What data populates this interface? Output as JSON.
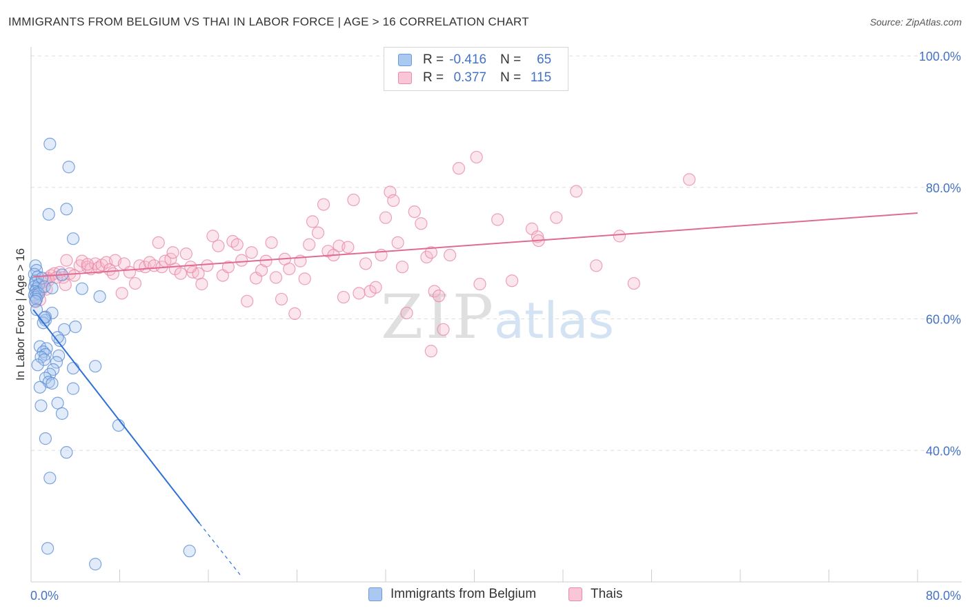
{
  "header": {
    "title": "IMMIGRANTS FROM BELGIUM VS THAI IN LABOR FORCE | AGE > 16 CORRELATION CHART",
    "source": "Source: ZipAtlas.com"
  },
  "watermark": {
    "zip": "ZIP",
    "atlas": "atlas"
  },
  "legend_top": {
    "rows": [
      {
        "r_label": "R =",
        "r_value": "-0.416",
        "n_label": "N =",
        "n_value": "65",
        "color": "#aac8f0",
        "border": "#6a9ad8"
      },
      {
        "r_label": "R =",
        "r_value": "0.377",
        "n_label": "N =",
        "n_value": "115",
        "color": "#f8c6d6",
        "border": "#e88aa8"
      }
    ]
  },
  "legend_bottom": {
    "items": [
      {
        "label": "Immigrants from Belgium",
        "color": "#aac8f0",
        "border": "#6a9ad8"
      },
      {
        "label": "Thais",
        "color": "#f8c6d6",
        "border": "#e88aa8"
      }
    ]
  },
  "chart_data": {
    "type": "scatter",
    "ylabel": "In Labor Force | Age > 16",
    "xlim": [
      0,
      80
    ],
    "ylim": [
      20,
      102
    ],
    "x_tick_labels": [
      {
        "value": 0,
        "label": "0.0%"
      },
      {
        "value": 80,
        "label": "80.0%"
      }
    ],
    "y_tick_labels": [
      {
        "value": 100,
        "label": "100.0%"
      },
      {
        "value": 80,
        "label": "80.0%"
      },
      {
        "value": 60,
        "label": "60.0%"
      },
      {
        "value": 40,
        "label": "40.0%"
      }
    ],
    "y_gridlines": [
      100,
      80,
      60,
      40
    ],
    "x_minor_ticks": [
      8,
      16,
      24,
      32,
      40,
      48,
      56,
      64,
      72,
      80
    ],
    "colors": {
      "blue": "#4a86d8",
      "pink": "#e8709a",
      "blue_line": "#2e6fd6",
      "pink_line": "#e06a92",
      "tick_label": "#4472c4"
    },
    "series": [
      {
        "name": "Immigrants from Belgium",
        "color": "#7ea8e6",
        "trend": {
          "x": [
            0.2,
            15.2
          ],
          "y": [
            61.4,
            28.9
          ],
          "dash_to": [
            19.0,
            20.8
          ]
        },
        "points": [
          [
            1.7,
            86.6
          ],
          [
            3.4,
            83.1
          ],
          [
            3.2,
            76.7
          ],
          [
            1.6,
            75.9
          ],
          [
            3.8,
            72.2
          ],
          [
            0.4,
            68.1
          ],
          [
            0.5,
            67.4
          ],
          [
            0.3,
            66.8
          ],
          [
            0.4,
            65.8
          ],
          [
            0.6,
            66.4
          ],
          [
            0.4,
            65.5
          ],
          [
            0.3,
            64.9
          ],
          [
            0.5,
            64.6
          ],
          [
            0.7,
            65.2
          ],
          [
            0.4,
            64.2
          ],
          [
            0.6,
            64.0
          ],
          [
            0.3,
            63.6
          ],
          [
            0.4,
            63.3
          ],
          [
            0.7,
            63.8
          ],
          [
            1.0,
            66.2
          ],
          [
            2.8,
            66.7
          ],
          [
            1.2,
            64.9
          ],
          [
            0.5,
            63.0
          ],
          [
            0.4,
            62.7
          ],
          [
            1.9,
            64.7
          ],
          [
            4.6,
            64.6
          ],
          [
            6.2,
            63.4
          ],
          [
            0.5,
            61.4
          ],
          [
            1.9,
            60.9
          ],
          [
            1.3,
            60.3
          ],
          [
            1.3,
            59.8
          ],
          [
            1.1,
            59.4
          ],
          [
            3.0,
            58.4
          ],
          [
            4.0,
            58.8
          ],
          [
            2.6,
            56.7
          ],
          [
            0.8,
            55.8
          ],
          [
            1.4,
            55.5
          ],
          [
            1.1,
            55.0
          ],
          [
            1.3,
            54.6
          ],
          [
            2.5,
            54.4
          ],
          [
            0.9,
            54.2
          ],
          [
            1.2,
            53.8
          ],
          [
            2.3,
            53.4
          ],
          [
            0.6,
            53.0
          ],
          [
            3.8,
            52.5
          ],
          [
            5.8,
            52.8
          ],
          [
            2.0,
            52.3
          ],
          [
            1.7,
            51.6
          ],
          [
            1.3,
            51.0
          ],
          [
            1.6,
            50.4
          ],
          [
            1.9,
            50.2
          ],
          [
            0.8,
            49.6
          ],
          [
            3.8,
            49.4
          ],
          [
            2.4,
            47.2
          ],
          [
            0.9,
            46.8
          ],
          [
            2.8,
            45.6
          ],
          [
            7.9,
            43.8
          ],
          [
            1.3,
            41.8
          ],
          [
            3.2,
            39.7
          ],
          [
            1.7,
            35.8
          ],
          [
            1.5,
            25.1
          ],
          [
            14.3,
            24.7
          ],
          [
            5.8,
            22.7
          ],
          [
            1.2,
            60.2
          ],
          [
            2.4,
            57.2
          ]
        ]
      },
      {
        "name": "Thais",
        "color": "#f0a2bc",
        "trend": {
          "x": [
            0.2,
            80.0
          ],
          "y": [
            66.4,
            76.1
          ]
        },
        "points": [
          [
            0.4,
            62.6
          ],
          [
            0.6,
            63.9
          ],
          [
            0.9,
            64.4
          ],
          [
            1.0,
            64.9
          ],
          [
            1.2,
            65.7
          ],
          [
            1.5,
            66.2
          ],
          [
            1.8,
            66.6
          ],
          [
            2.1,
            66.9
          ],
          [
            1.6,
            65.9
          ],
          [
            2.6,
            67.1
          ],
          [
            2.9,
            66.3
          ],
          [
            3.1,
            65.2
          ],
          [
            3.5,
            66.9
          ],
          [
            3.9,
            66.6
          ],
          [
            4.4,
            68.1
          ],
          [
            4.6,
            68.8
          ],
          [
            5.1,
            67.9
          ],
          [
            5.4,
            67.6
          ],
          [
            5.8,
            68.4
          ],
          [
            6.1,
            67.8
          ],
          [
            6.4,
            68.2
          ],
          [
            6.8,
            68.6
          ],
          [
            7.1,
            67.5
          ],
          [
            7.4,
            66.9
          ],
          [
            7.6,
            68.9
          ],
          [
            8.4,
            68.4
          ],
          [
            8.9,
            67.1
          ],
          [
            9.4,
            65.4
          ],
          [
            9.8,
            68.1
          ],
          [
            10.3,
            67.9
          ],
          [
            10.7,
            68.6
          ],
          [
            11.1,
            68.1
          ],
          [
            11.5,
            71.6
          ],
          [
            11.8,
            67.9
          ],
          [
            12.1,
            68.8
          ],
          [
            12.6,
            69.1
          ],
          [
            13.0,
            67.6
          ],
          [
            13.5,
            66.9
          ],
          [
            14.0,
            69.9
          ],
          [
            14.6,
            67.1
          ],
          [
            15.1,
            66.9
          ],
          [
            15.4,
            65.3
          ],
          [
            15.9,
            68.1
          ],
          [
            16.4,
            72.6
          ],
          [
            16.9,
            71.1
          ],
          [
            17.3,
            66.6
          ],
          [
            17.8,
            67.9
          ],
          [
            18.2,
            71.8
          ],
          [
            18.6,
            71.3
          ],
          [
            19.0,
            68.9
          ],
          [
            19.5,
            62.7
          ],
          [
            19.9,
            70.1
          ],
          [
            20.3,
            66.2
          ],
          [
            20.8,
            67.4
          ],
          [
            21.2,
            68.8
          ],
          [
            21.7,
            71.6
          ],
          [
            22.1,
            66.3
          ],
          [
            22.6,
            63.0
          ],
          [
            22.9,
            69.1
          ],
          [
            23.3,
            67.6
          ],
          [
            23.8,
            60.8
          ],
          [
            24.3,
            68.8
          ],
          [
            24.7,
            66.1
          ],
          [
            25.1,
            71.3
          ],
          [
            25.4,
            74.8
          ],
          [
            25.9,
            73.1
          ],
          [
            26.4,
            77.4
          ],
          [
            26.8,
            70.3
          ],
          [
            27.3,
            69.7
          ],
          [
            27.8,
            71.1
          ],
          [
            28.2,
            63.3
          ],
          [
            28.6,
            70.9
          ],
          [
            29.1,
            78.1
          ],
          [
            29.6,
            63.9
          ],
          [
            30.2,
            68.4
          ],
          [
            30.6,
            64.2
          ],
          [
            31.1,
            64.8
          ],
          [
            31.6,
            69.7
          ],
          [
            32.0,
            75.4
          ],
          [
            32.4,
            79.3
          ],
          [
            32.7,
            78.0
          ],
          [
            33.1,
            71.6
          ],
          [
            33.5,
            67.9
          ],
          [
            33.9,
            60.9
          ],
          [
            34.6,
            76.3
          ],
          [
            35.2,
            74.5
          ],
          [
            35.7,
            69.4
          ],
          [
            36.1,
            70.1
          ],
          [
            36.4,
            64.2
          ],
          [
            36.8,
            63.5
          ],
          [
            37.2,
            58.4
          ],
          [
            37.8,
            69.7
          ],
          [
            38.6,
            82.9
          ],
          [
            40.2,
            84.6
          ],
          [
            40.5,
            65.3
          ],
          [
            42.1,
            75.1
          ],
          [
            43.4,
            65.8
          ],
          [
            45.2,
            73.7
          ],
          [
            45.7,
            72.5
          ],
          [
            45.8,
            71.9
          ],
          [
            47.4,
            75.4
          ],
          [
            49.2,
            79.4
          ],
          [
            51.0,
            68.1
          ],
          [
            53.1,
            72.6
          ],
          [
            54.4,
            65.4
          ],
          [
            59.4,
            81.2
          ],
          [
            36.1,
            55.1
          ],
          [
            14.4,
            67.9
          ],
          [
            12.8,
            70.1
          ],
          [
            8.2,
            63.9
          ],
          [
            3.2,
            68.9
          ],
          [
            2.3,
            66.3
          ],
          [
            1.4,
            64.5
          ],
          [
            0.8,
            62.9
          ],
          [
            5.1,
            68.3
          ]
        ]
      }
    ]
  }
}
